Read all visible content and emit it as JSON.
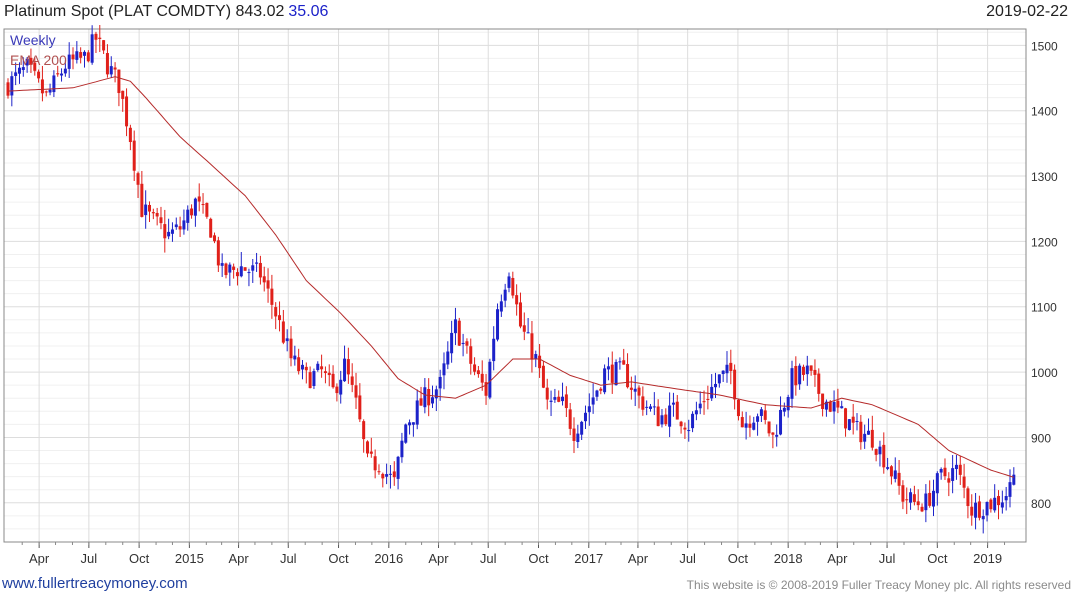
{
  "header": {
    "title": "Platinum Spot (PLAT COMDTY) 843.02",
    "change": "35.06",
    "date": "2019-02-22"
  },
  "footer": {
    "link": "www.fullertreacymoney.com",
    "copyright": "This website is © 2008-2019 Fuller Treacy Money plc. All rights reserved"
  },
  "colors": {
    "up": "#1c22c9",
    "down": "#e0201a",
    "ema": "#b52a2a",
    "grid": "#dddddd",
    "weekly_legend": "#3a3ab8",
    "ema_legend": "#b05050"
  },
  "chart_data": {
    "type": "candlestick",
    "frequency": "weekly",
    "legend": [
      "Weekly",
      "EMA 200"
    ],
    "legend_position": "top-left",
    "ylim": [
      740,
      1525
    ],
    "y_ticks": [
      800,
      900,
      1000,
      1100,
      1200,
      1300,
      1400,
      1500
    ],
    "x_tick_labels": [
      "Apr",
      "Jul",
      "Oct",
      "2015",
      "Apr",
      "Jul",
      "Oct",
      "2016",
      "Apr",
      "Jul",
      "Oct",
      "2017",
      "Apr",
      "Jul",
      "Oct",
      "2018",
      "Apr",
      "Jul",
      "Oct",
      "2019"
    ],
    "x_range": [
      "2014-02-03",
      "2019-02-22"
    ],
    "close_path": [
      [
        "2014-02-03",
        1440
      ],
      [
        "2014-03-10",
        1465
      ],
      [
        "2014-04-14",
        1420
      ],
      [
        "2014-05-19",
        1470
      ],
      [
        "2014-06-23",
        1480
      ],
      [
        "2014-07-14",
        1510
      ],
      [
        "2014-08-04",
        1470
      ],
      [
        "2014-08-25",
        1440
      ],
      [
        "2014-09-15",
        1360
      ],
      [
        "2014-10-06",
        1250
      ],
      [
        "2014-10-27",
        1230
      ],
      [
        "2014-11-24",
        1210
      ],
      [
        "2014-12-15",
        1220
      ],
      [
        "2015-01-12",
        1260
      ],
      [
        "2015-02-09",
        1220
      ],
      [
        "2015-03-02",
        1150
      ],
      [
        "2015-04-06",
        1160
      ],
      [
        "2015-05-11",
        1150
      ],
      [
        "2015-06-08",
        1090
      ],
      [
        "2015-07-06",
        1020
      ],
      [
        "2015-08-03",
        990
      ],
      [
        "2015-08-31",
        1000
      ],
      [
        "2015-09-21",
        970
      ],
      [
        "2015-10-12",
        1010
      ],
      [
        "2015-11-02",
        950
      ],
      [
        "2015-11-23",
        860
      ],
      [
        "2015-12-14",
        860
      ],
      [
        "2016-01-11",
        830
      ],
      [
        "2016-02-01",
        920
      ],
      [
        "2016-03-07",
        960
      ],
      [
        "2016-04-04",
        980
      ],
      [
        "2016-05-02",
        1070
      ],
      [
        "2016-06-06",
        1000
      ],
      [
        "2016-06-27",
        970
      ],
      [
        "2016-07-18",
        1100
      ],
      [
        "2016-08-08",
        1160
      ],
      [
        "2016-08-29",
        1070
      ],
      [
        "2016-09-26",
        1020
      ],
      [
        "2016-10-17",
        950
      ],
      [
        "2016-11-14",
        950
      ],
      [
        "2016-12-05",
        910
      ],
      [
        "2017-01-02",
        950
      ],
      [
        "2017-01-30",
        1000
      ],
      [
        "2017-03-06",
        1000
      ],
      [
        "2017-04-03",
        960
      ],
      [
        "2017-05-08",
        930
      ],
      [
        "2017-06-05",
        940
      ],
      [
        "2017-07-03",
        920
      ],
      [
        "2017-07-31",
        960
      ],
      [
        "2017-08-28",
        990
      ],
      [
        "2017-09-18",
        1000
      ],
      [
        "2017-10-09",
        920
      ],
      [
        "2017-11-06",
        940
      ],
      [
        "2017-12-04",
        900
      ],
      [
        "2018-01-08",
        990
      ],
      [
        "2018-02-05",
        1000
      ],
      [
        "2018-03-05",
        960
      ],
      [
        "2018-04-02",
        940
      ],
      [
        "2018-05-07",
        910
      ],
      [
        "2018-06-04",
        900
      ],
      [
        "2018-07-02",
        860
      ],
      [
        "2018-07-30",
        810
      ],
      [
        "2018-08-20",
        800
      ],
      [
        "2018-09-10",
        800
      ],
      [
        "2018-10-08",
        840
      ],
      [
        "2018-11-05",
        850
      ],
      [
        "2018-12-03",
        790
      ],
      [
        "2019-01-07",
        800
      ],
      [
        "2019-02-01",
        810
      ],
      [
        "2019-02-22",
        843
      ]
    ],
    "ema_path": [
      [
        "2014-02-03",
        1430
      ],
      [
        "2014-06-02",
        1435
      ],
      [
        "2014-08-18",
        1452
      ],
      [
        "2014-09-15",
        1445
      ],
      [
        "2014-10-13",
        1420
      ],
      [
        "2014-12-15",
        1360
      ],
      [
        "2015-02-09",
        1318
      ],
      [
        "2015-04-13",
        1270
      ],
      [
        "2015-06-08",
        1210
      ],
      [
        "2015-08-03",
        1140
      ],
      [
        "2015-10-05",
        1090
      ],
      [
        "2015-11-30",
        1040
      ],
      [
        "2016-01-18",
        990
      ],
      [
        "2016-03-07",
        965
      ],
      [
        "2016-05-02",
        960
      ],
      [
        "2016-06-27",
        980
      ],
      [
        "2016-08-15",
        1020
      ],
      [
        "2016-10-03",
        1020
      ],
      [
        "2016-11-28",
        995
      ],
      [
        "2017-01-23",
        980
      ],
      [
        "2017-03-20",
        985
      ],
      [
        "2017-06-05",
        975
      ],
      [
        "2017-08-28",
        965
      ],
      [
        "2017-11-20",
        950
      ],
      [
        "2018-02-12",
        945
      ],
      [
        "2018-04-09",
        960
      ],
      [
        "2018-06-04",
        950
      ],
      [
        "2018-08-27",
        920
      ],
      [
        "2018-10-22",
        880
      ],
      [
        "2019-01-07",
        850
      ],
      [
        "2019-02-22",
        838
      ]
    ]
  }
}
